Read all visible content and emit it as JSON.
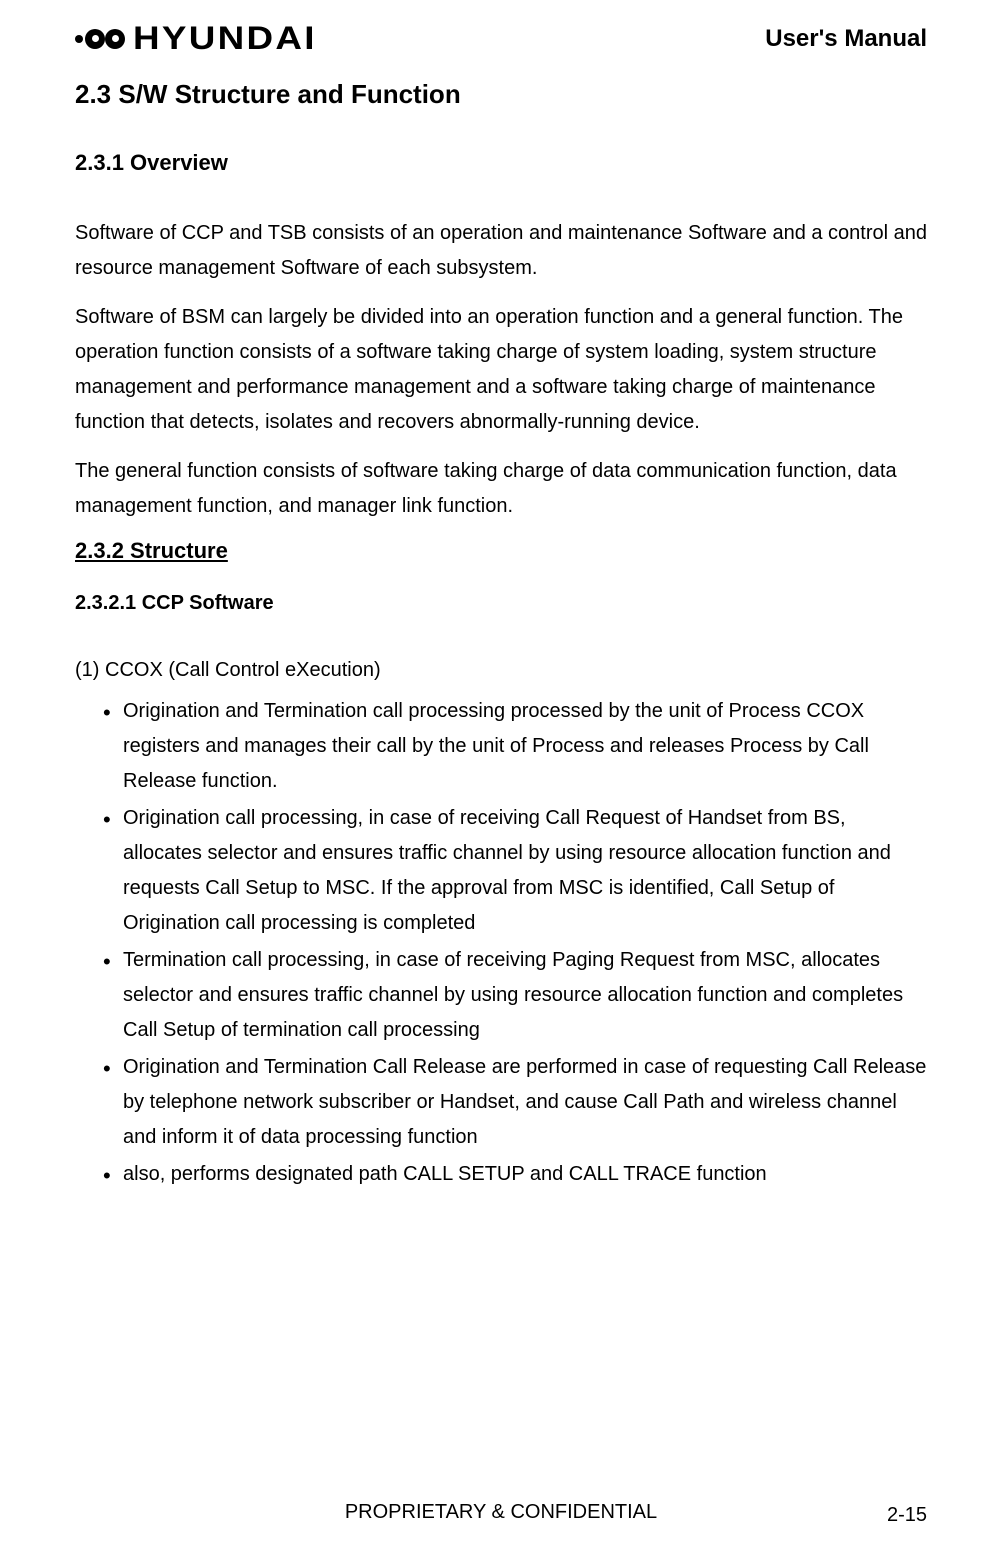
{
  "header": {
    "logo_text": "HYUNDAI",
    "title": "User's Manual"
  },
  "sections": {
    "h1": "2.3  S/W Structure and Function",
    "h2_overview": "2.3.1  Overview",
    "overview_p1": "Software of CCP and TSB consists of an operation and maintenance Software and a control and resource management Software of each subsystem.",
    "overview_p2": "Software of BSM can largely be divided into an operation function and a general function. The operation function consists of a software taking charge of system loading, system structure management and performance management and a software taking charge of maintenance function that detects, isolates and recovers abnormally-running device.",
    "overview_p3": "The general function consists of software taking charge of data communication function, data management function, and manager link function.",
    "h2_structure": "2.3.2  Structure",
    "h3_ccp": "2.3.2.1  CCP Software",
    "ccox_heading": "(1) CCOX (Call Control eXecution)",
    "bullets": [
      "Origination and Termination call processing processed by the unit of Process CCOX registers and manages their call by the unit of Process and releases Process by Call Release function.",
      "Origination call processing, in case of receiving Call Request of Handset from BS, allocates selector and ensures traffic channel by using resource allocation function and requests Call Setup to MSC. If the approval from MSC is identified, Call Setup of Origination call processing is completed",
      "Termination call processing, in case of receiving Paging Request from MSC, allocates selector and ensures traffic channel by using resource allocation function and completes Call Setup of termination call processing",
      "Origination and Termination Call Release are performed in case of requesting Call Release by telephone network subscriber or Handset, and cause Call Path and wireless channel and inform it of data processing function",
      "also, performs designated path CALL SETUP and CALL TRACE function"
    ]
  },
  "footer": {
    "text": "PROPRIETARY & CONFIDENTIAL",
    "page": "2-15"
  },
  "colors": {
    "background": "#ffffff",
    "text": "#000000"
  },
  "typography": {
    "body_fontsize": 20,
    "h1_fontsize": 26,
    "h2_fontsize": 22,
    "h3_fontsize": 20,
    "line_height": 1.75
  }
}
